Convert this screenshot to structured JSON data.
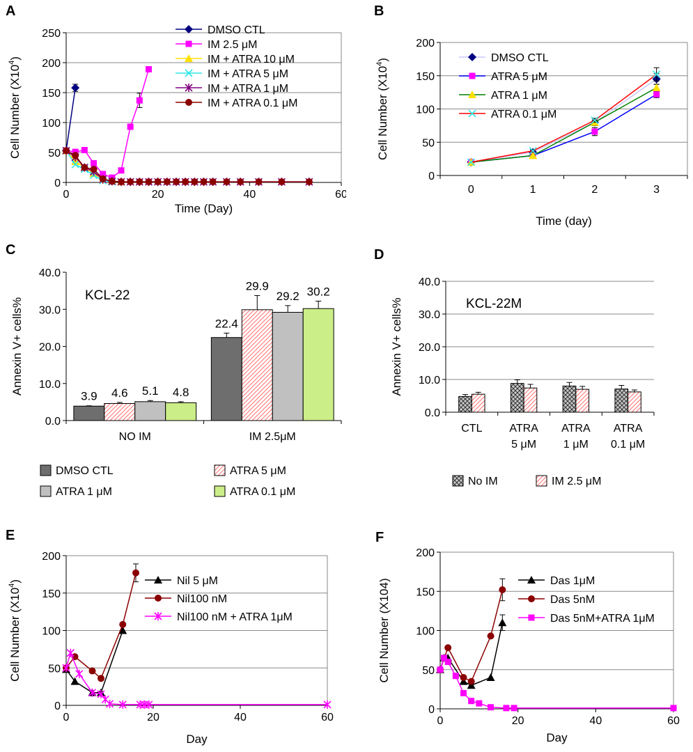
{
  "colors": {
    "navy": "#000080",
    "magenta": "#FF00FF",
    "yellow": "#FFE000",
    "cyan": "#33E6E6",
    "purple": "#800080",
    "darkred": "#8B0000",
    "blue": "#0000FF",
    "green": "#008000",
    "red": "#FF0000",
    "black": "#000000",
    "darkgray": "#6E6E6E",
    "pinkred": "#FF6F6F",
    "lightgray": "#C0C0C0",
    "lightgreen": "#CCEE88"
  },
  "chart_data": [
    {
      "id": "A",
      "panel_label": "A",
      "type": "line",
      "title": "",
      "xlabel": "Time (Day)",
      "ylabel": "Cell Number (X10",
      "ylabel_sup": "4",
      "ylabel_close": ")",
      "xlim": [
        0,
        60
      ],
      "ylim": [
        0,
        250
      ],
      "xticks": [
        0,
        20,
        40,
        60
      ],
      "yticks": [
        0,
        50,
        100,
        150,
        200,
        250
      ],
      "grid": true,
      "legend": "top-right",
      "series": [
        {
          "name": "DMSO CTL",
          "color": "#000080",
          "marker": "diamond",
          "x": [
            0,
            2
          ],
          "y": [
            53,
            158
          ],
          "err": [
            0,
            6
          ]
        },
        {
          "name": "IM 2.5 μM",
          "color": "#FF00FF",
          "marker": "square",
          "x": [
            0,
            2,
            4,
            6,
            8,
            10,
            12,
            14,
            16,
            18
          ],
          "y": [
            53,
            51,
            54,
            32,
            14,
            8,
            20,
            93,
            137,
            189
          ],
          "err": [
            0,
            0,
            0,
            0,
            0,
            0,
            0,
            0,
            12,
            3
          ]
        },
        {
          "name": "IM + ATRA 10 μM",
          "color": "#FFE000",
          "marker": "triangle",
          "x": [
            0,
            2,
            4,
            6,
            8,
            10,
            12
          ],
          "y": [
            53,
            35,
            25,
            15,
            5,
            2,
            1
          ],
          "err": []
        },
        {
          "name": "IM + ATRA 5 μM",
          "color": "#33E6E6",
          "marker": "x",
          "x": [
            0,
            2,
            4,
            6,
            8,
            10
          ],
          "y": [
            53,
            30,
            22,
            12,
            3,
            1
          ],
          "err": []
        },
        {
          "name": "IM + ATRA 1 μM",
          "color": "#800080",
          "marker": "star",
          "x": [
            0,
            2,
            4,
            6,
            8,
            10,
            12,
            14,
            16,
            18,
            20,
            22,
            24,
            26,
            28,
            30,
            32,
            35,
            38,
            42,
            47,
            53
          ],
          "y": [
            53,
            42,
            25,
            18,
            5,
            2,
            1,
            1,
            1,
            1,
            1,
            1,
            1,
            1,
            1,
            1,
            1,
            1,
            1,
            1,
            1,
            1
          ],
          "err": []
        },
        {
          "name": "IM + ATRA 0.1 μM",
          "color": "#8B0000",
          "marker": "circle",
          "x": [
            0,
            2,
            4,
            6,
            8,
            10,
            12,
            14,
            16,
            18,
            20,
            22,
            24,
            26,
            28,
            30,
            32,
            35,
            38,
            42,
            47,
            53
          ],
          "y": [
            53,
            45,
            25,
            22,
            6,
            2,
            1,
            1,
            1,
            1,
            1,
            1,
            1,
            1,
            1,
            1,
            1,
            1,
            1,
            1,
            1,
            1
          ],
          "err": []
        }
      ]
    },
    {
      "id": "B",
      "panel_label": "B",
      "type": "line",
      "title": "",
      "xlabel": "Time (day)",
      "ylabel": "Cell Number (X10",
      "ylabel_sup": "4",
      "ylabel_close": ")",
      "categories": [
        "0",
        "1",
        "2",
        "3"
      ],
      "ylim": [
        0,
        200
      ],
      "yticks": [
        0,
        50,
        100,
        150,
        200
      ],
      "grid": true,
      "legend": "top-left",
      "series": [
        {
          "name": "DMSO CTL",
          "color": "#000080",
          "line_color": "#C8C8FF",
          "marker": "diamond",
          "y": [
            20,
            35,
            80,
            145
          ],
          "err": [
            0,
            3,
            5,
            8
          ]
        },
        {
          "name": "ATRA 5 μM",
          "color": "#FF00FF",
          "line_color": "#0000FF",
          "marker": "square",
          "y": [
            20,
            30,
            66,
            122
          ],
          "err": [
            0,
            2,
            6,
            5
          ]
        },
        {
          "name": "ATRA 1 μM",
          "color": "#FFE000",
          "line_color": "#008000",
          "marker": "triangle",
          "y": [
            20,
            30,
            80,
            132
          ],
          "err": [
            0,
            2,
            3,
            5
          ]
        },
        {
          "name": "ATRA 0.1 μM",
          "color": "#33E6E6",
          "line_color": "#FF0000",
          "marker": "x",
          "y": [
            20,
            37,
            83,
            152
          ],
          "err": [
            0,
            2,
            3,
            10
          ]
        }
      ]
    },
    {
      "id": "C",
      "panel_label": "C",
      "type": "bar",
      "title": "KCL-22",
      "ylabel": "Annexin V+ cells%",
      "categories": [
        "NO IM",
        "IM 2.5μM"
      ],
      "ylim": [
        0,
        40
      ],
      "yticks": [
        "0.0",
        "10.0",
        "20.0",
        "30.0",
        "40.0"
      ],
      "grid": false,
      "legend": "bottom",
      "series": [
        {
          "name": "DMSO CTL",
          "color": "#6E6E6E",
          "pattern": "solid",
          "values": [
            3.9,
            22.4
          ],
          "labels": [
            "3.9",
            "22.4"
          ],
          "err": [
            0.1,
            1.2
          ]
        },
        {
          "name": "ATRA 5 μM",
          "color": "#FF6F6F",
          "pattern": "hatch",
          "values": [
            4.6,
            29.9
          ],
          "labels": [
            "4.6",
            "29.9"
          ],
          "err": [
            0.3,
            3.8
          ]
        },
        {
          "name": "ATRA 1 μM",
          "color": "#C0C0C0",
          "pattern": "solid",
          "values": [
            5.1,
            29.2
          ],
          "labels": [
            "5.1",
            "29.2"
          ],
          "err": [
            0.3,
            1.8
          ]
        },
        {
          "name": "ATRA 0.1 μM",
          "color": "#CCEE88",
          "pattern": "solid",
          "values": [
            4.8,
            30.2
          ],
          "labels": [
            "4.8",
            "30.2"
          ],
          "err": [
            0.3,
            2.0
          ]
        }
      ]
    },
    {
      "id": "D",
      "panel_label": "D",
      "type": "bar",
      "title": "KCL-22M",
      "ylabel": "Annexin V+ cells%",
      "categories": [
        [
          "CTL"
        ],
        [
          "ATRA",
          "5 μM"
        ],
        [
          "ATRA",
          "1 μM"
        ],
        [
          "ATRA",
          "0.1 μM"
        ]
      ],
      "ylim": [
        0,
        40
      ],
      "yticks": [
        "0.0",
        "10.0",
        "20.0",
        "30.0",
        "40.0"
      ],
      "grid": true,
      "legend": "bottom",
      "series": [
        {
          "name": "No IM",
          "color": "#C8C8C8",
          "pattern": "crosshatch",
          "values": [
            4.8,
            8.8,
            8.0,
            7.1
          ],
          "err": [
            0.6,
            1.1,
            1.1,
            1.1
          ]
        },
        {
          "name": "IM 2.5 μM",
          "color": "#FF6F6F",
          "pattern": "hatch",
          "values": [
            5.5,
            7.4,
            7.0,
            6.2
          ],
          "err": [
            0.6,
            1.1,
            0.9,
            0.6
          ]
        }
      ]
    },
    {
      "id": "E",
      "panel_label": "E",
      "type": "line",
      "title": "",
      "xlabel": "Day",
      "ylabel": "Cell Number (X10",
      "ylabel_sup": "4",
      "ylabel_close": ")",
      "xlim": [
        0,
        60
      ],
      "ylim": [
        0,
        200
      ],
      "xticks": [
        0,
        20,
        40,
        60
      ],
      "yticks": [
        0,
        50,
        100,
        150,
        200
      ],
      "grid": true,
      "legend": "top-right",
      "series": [
        {
          "name": "Nil 5 μM",
          "color": "#000000",
          "marker": "triangle",
          "x": [
            0,
            2,
            6,
            8,
            13
          ],
          "y": [
            48,
            32,
            17,
            17,
            100
          ],
          "err": []
        },
        {
          "name": "Nil100 nM",
          "color": "#8B0000",
          "marker": "circle",
          "x": [
            0,
            2,
            6,
            8,
            13,
            16
          ],
          "y": [
            50,
            65,
            46,
            36,
            108,
            177
          ],
          "err": [
            0,
            0,
            0,
            0,
            0,
            12
          ]
        },
        {
          "name": "Nil100 nM + ATRA 1μM",
          "color": "#FF00FF",
          "marker": "star",
          "x": [
            0,
            1,
            3,
            6,
            8,
            9,
            10,
            13,
            17,
            18,
            19,
            60
          ],
          "y": [
            50,
            70,
            42,
            17,
            15,
            8,
            2,
            1,
            1,
            1,
            1,
            1
          ],
          "err": []
        }
      ]
    },
    {
      "id": "F",
      "panel_label": "F",
      "type": "line",
      "title": "",
      "xlabel": "Day",
      "ylabel": "Cell Number (X104)",
      "ylabel_sup": "",
      "ylabel_close": "",
      "xlim": [
        0,
        60
      ],
      "ylim": [
        0,
        200
      ],
      "xticks": [
        0,
        20,
        40,
        60
      ],
      "yticks": [
        0,
        50,
        100,
        150,
        200
      ],
      "grid": true,
      "legend": "top-right",
      "series": [
        {
          "name": "Das 1μM",
          "color": "#000000",
          "marker": "triangle",
          "x": [
            0,
            1,
            2,
            6,
            8,
            13,
            16
          ],
          "y": [
            50,
            65,
            65,
            35,
            30,
            40,
            110
          ],
          "err": [
            0,
            0,
            0,
            0,
            0,
            0,
            10
          ]
        },
        {
          "name": "Das 5nM",
          "color": "#8B0000",
          "marker": "circle",
          "x": [
            0,
            2,
            6,
            8,
            13,
            16
          ],
          "y": [
            50,
            78,
            40,
            35,
            93,
            152
          ],
          "err": [
            0,
            0,
            0,
            0,
            0,
            14
          ]
        },
        {
          "name": "Das 5nM+ATRA 1μM",
          "color": "#FF00FF",
          "marker": "square",
          "x": [
            0,
            1,
            2,
            4,
            6,
            8,
            10,
            13,
            17,
            19,
            60
          ],
          "y": [
            50,
            65,
            60,
            42,
            20,
            10,
            7,
            2,
            1,
            1,
            1
          ],
          "err": []
        }
      ]
    }
  ]
}
